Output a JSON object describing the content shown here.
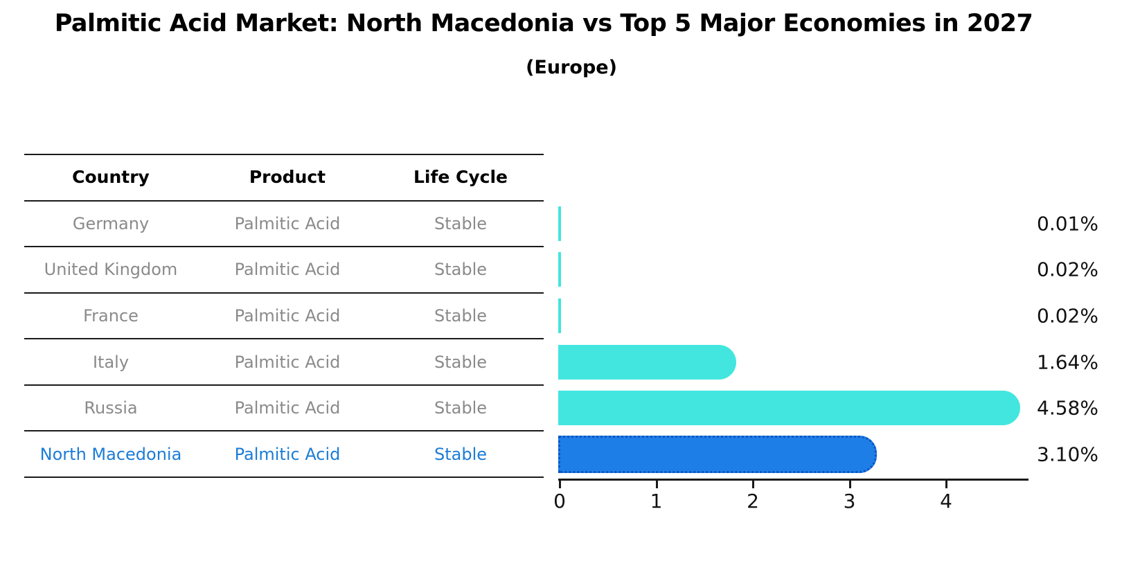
{
  "title": "Palmitic Acid Market: North Macedonia vs Top 5 Major Economies in 2027",
  "subtitle": "(Europe)",
  "colors": {
    "bar_default": "#42e6de",
    "bar_highlight": "#1e7ee8",
    "highlight_border": "#0a55c0",
    "highlight_text": "#1c7cd6",
    "table_text": "#8a8a8a",
    "header_text": "#000000",
    "axis": "#1a1a1a"
  },
  "table": {
    "headers": [
      "Country",
      "Product",
      "Life Cycle"
    ]
  },
  "chart_data": {
    "type": "bar",
    "orientation": "horizontal",
    "title": "Palmitic Acid Market: North Macedonia vs Top 5 Major Economies in 2027",
    "subtitle": "(Europe)",
    "categories": [
      "Germany",
      "United Kingdom",
      "France",
      "Italy",
      "Russia",
      "North Macedonia"
    ],
    "values": [
      0.01,
      0.02,
      0.02,
      1.64,
      4.58,
      3.1
    ],
    "value_labels": [
      "0.01%",
      "0.02%",
      "0.02%",
      "1.64%",
      "4.58%",
      "3.10%"
    ],
    "rows": [
      {
        "country": "Germany",
        "product": "Palmitic Acid",
        "life_cycle": "Stable",
        "value": 0.01,
        "value_label": "0.01%",
        "highlighted": false
      },
      {
        "country": "United Kingdom",
        "product": "Palmitic Acid",
        "life_cycle": "Stable",
        "value": 0.02,
        "value_label": "0.02%",
        "highlighted": false
      },
      {
        "country": "France",
        "product": "Palmitic Acid",
        "life_cycle": "Stable",
        "value": 0.02,
        "value_label": "0.02%",
        "highlighted": false
      },
      {
        "country": "Italy",
        "product": "Palmitic Acid",
        "life_cycle": "Stable",
        "value": 1.64,
        "value_label": "1.64%",
        "highlighted": false
      },
      {
        "country": "Russia",
        "product": "Palmitic Acid",
        "life_cycle": "Stable",
        "value": 4.58,
        "value_label": "4.58%",
        "highlighted": false
      },
      {
        "country": "North Macedonia",
        "product": "Palmitic Acid",
        "life_cycle": "Stable",
        "value": 3.1,
        "value_label": "3.10%",
        "highlighted": true
      }
    ],
    "x_ticks": [
      0,
      1,
      2,
      3,
      4
    ],
    "xlim": [
      0,
      4.84
    ],
    "grid": false,
    "legend": false,
    "highlighted_category": "North Macedonia"
  }
}
